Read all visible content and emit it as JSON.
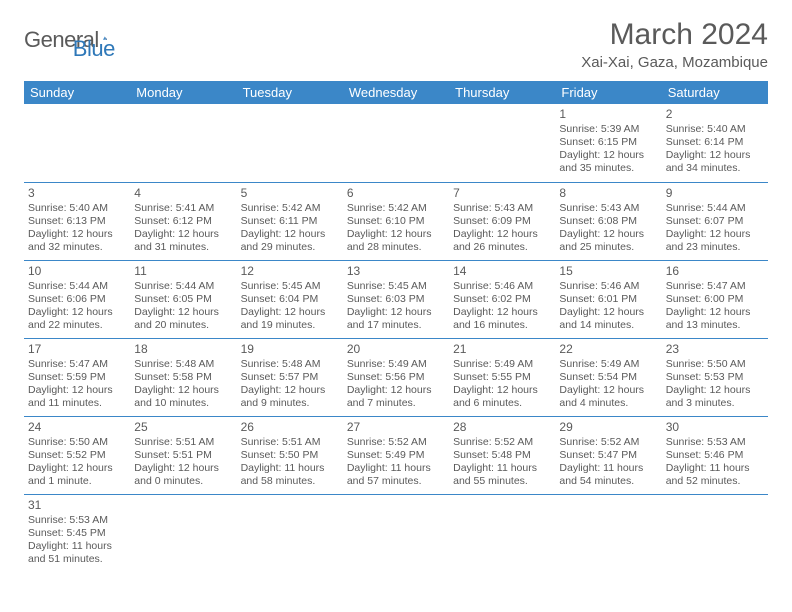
{
  "logo": {
    "general": "General",
    "blue": "Blue"
  },
  "title": "March 2024",
  "location": "Xai-Xai, Gaza, Mozambique",
  "colors": {
    "header_bg": "#3b87c8",
    "header_text": "#ffffff",
    "text": "#5a5a5a",
    "logo_blue": "#2f78b8",
    "page_bg": "#ffffff"
  },
  "weekdays": [
    "Sunday",
    "Monday",
    "Tuesday",
    "Wednesday",
    "Thursday",
    "Friday",
    "Saturday"
  ],
  "weeks": [
    [
      null,
      null,
      null,
      null,
      null,
      {
        "d": "1",
        "sr": "5:39 AM",
        "ss": "6:15 PM",
        "dl": "12 hours and 35 minutes."
      },
      {
        "d": "2",
        "sr": "5:40 AM",
        "ss": "6:14 PM",
        "dl": "12 hours and 34 minutes."
      }
    ],
    [
      {
        "d": "3",
        "sr": "5:40 AM",
        "ss": "6:13 PM",
        "dl": "12 hours and 32 minutes."
      },
      {
        "d": "4",
        "sr": "5:41 AM",
        "ss": "6:12 PM",
        "dl": "12 hours and 31 minutes."
      },
      {
        "d": "5",
        "sr": "5:42 AM",
        "ss": "6:11 PM",
        "dl": "12 hours and 29 minutes."
      },
      {
        "d": "6",
        "sr": "5:42 AM",
        "ss": "6:10 PM",
        "dl": "12 hours and 28 minutes."
      },
      {
        "d": "7",
        "sr": "5:43 AM",
        "ss": "6:09 PM",
        "dl": "12 hours and 26 minutes."
      },
      {
        "d": "8",
        "sr": "5:43 AM",
        "ss": "6:08 PM",
        "dl": "12 hours and 25 minutes."
      },
      {
        "d": "9",
        "sr": "5:44 AM",
        "ss": "6:07 PM",
        "dl": "12 hours and 23 minutes."
      }
    ],
    [
      {
        "d": "10",
        "sr": "5:44 AM",
        "ss": "6:06 PM",
        "dl": "12 hours and 22 minutes."
      },
      {
        "d": "11",
        "sr": "5:44 AM",
        "ss": "6:05 PM",
        "dl": "12 hours and 20 minutes."
      },
      {
        "d": "12",
        "sr": "5:45 AM",
        "ss": "6:04 PM",
        "dl": "12 hours and 19 minutes."
      },
      {
        "d": "13",
        "sr": "5:45 AM",
        "ss": "6:03 PM",
        "dl": "12 hours and 17 minutes."
      },
      {
        "d": "14",
        "sr": "5:46 AM",
        "ss": "6:02 PM",
        "dl": "12 hours and 16 minutes."
      },
      {
        "d": "15",
        "sr": "5:46 AM",
        "ss": "6:01 PM",
        "dl": "12 hours and 14 minutes."
      },
      {
        "d": "16",
        "sr": "5:47 AM",
        "ss": "6:00 PM",
        "dl": "12 hours and 13 minutes."
      }
    ],
    [
      {
        "d": "17",
        "sr": "5:47 AM",
        "ss": "5:59 PM",
        "dl": "12 hours and 11 minutes."
      },
      {
        "d": "18",
        "sr": "5:48 AM",
        "ss": "5:58 PM",
        "dl": "12 hours and 10 minutes."
      },
      {
        "d": "19",
        "sr": "5:48 AM",
        "ss": "5:57 PM",
        "dl": "12 hours and 9 minutes."
      },
      {
        "d": "20",
        "sr": "5:49 AM",
        "ss": "5:56 PM",
        "dl": "12 hours and 7 minutes."
      },
      {
        "d": "21",
        "sr": "5:49 AM",
        "ss": "5:55 PM",
        "dl": "12 hours and 6 minutes."
      },
      {
        "d": "22",
        "sr": "5:49 AM",
        "ss": "5:54 PM",
        "dl": "12 hours and 4 minutes."
      },
      {
        "d": "23",
        "sr": "5:50 AM",
        "ss": "5:53 PM",
        "dl": "12 hours and 3 minutes."
      }
    ],
    [
      {
        "d": "24",
        "sr": "5:50 AM",
        "ss": "5:52 PM",
        "dl": "12 hours and 1 minute."
      },
      {
        "d": "25",
        "sr": "5:51 AM",
        "ss": "5:51 PM",
        "dl": "12 hours and 0 minutes."
      },
      {
        "d": "26",
        "sr": "5:51 AM",
        "ss": "5:50 PM",
        "dl": "11 hours and 58 minutes."
      },
      {
        "d": "27",
        "sr": "5:52 AM",
        "ss": "5:49 PM",
        "dl": "11 hours and 57 minutes."
      },
      {
        "d": "28",
        "sr": "5:52 AM",
        "ss": "5:48 PM",
        "dl": "11 hours and 55 minutes."
      },
      {
        "d": "29",
        "sr": "5:52 AM",
        "ss": "5:47 PM",
        "dl": "11 hours and 54 minutes."
      },
      {
        "d": "30",
        "sr": "5:53 AM",
        "ss": "5:46 PM",
        "dl": "11 hours and 52 minutes."
      }
    ],
    [
      {
        "d": "31",
        "sr": "5:53 AM",
        "ss": "5:45 PM",
        "dl": "11 hours and 51 minutes."
      },
      null,
      null,
      null,
      null,
      null,
      null
    ]
  ],
  "labels": {
    "sunrise": "Sunrise: ",
    "sunset": "Sunset: ",
    "daylight": "Daylight: "
  }
}
